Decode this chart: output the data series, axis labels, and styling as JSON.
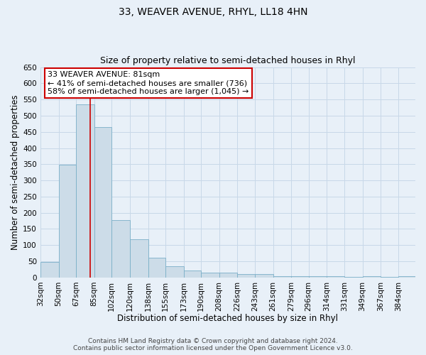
{
  "title": "33, WEAVER AVENUE, RHYL, LL18 4HN",
  "subtitle": "Size of property relative to semi-detached houses in Rhyl",
  "xlabel": "Distribution of semi-detached houses by size in Rhyl",
  "ylabel": "Number of semi-detached properties",
  "bin_labels": [
    "32sqm",
    "50sqm",
    "67sqm",
    "85sqm",
    "102sqm",
    "120sqm",
    "138sqm",
    "155sqm",
    "173sqm",
    "190sqm",
    "208sqm",
    "226sqm",
    "243sqm",
    "261sqm",
    "279sqm",
    "296sqm",
    "314sqm",
    "331sqm",
    "349sqm",
    "367sqm",
    "384sqm"
  ],
  "bin_edges": [
    32,
    50,
    67,
    85,
    102,
    120,
    138,
    155,
    173,
    190,
    208,
    226,
    243,
    261,
    279,
    296,
    314,
    331,
    349,
    367,
    384
  ],
  "bar_heights": [
    47,
    348,
    536,
    464,
    178,
    118,
    62,
    35,
    22,
    15,
    14,
    10,
    10,
    5,
    5,
    3,
    3,
    2,
    3,
    2,
    3
  ],
  "bar_color": "#ccdce8",
  "bar_edge_color": "#7aafc8",
  "grid_color": "#c8d8e8",
  "background_color": "#e8f0f8",
  "property_label": "33 WEAVER AVENUE: 81sqm",
  "pct_smaller": 41,
  "count_smaller": 736,
  "pct_larger": 58,
  "count_larger": 1045,
  "redline_x": 81,
  "ylim": [
    0,
    650
  ],
  "yticks": [
    0,
    50,
    100,
    150,
    200,
    250,
    300,
    350,
    400,
    450,
    500,
    550,
    600,
    650
  ],
  "footer_line1": "Contains HM Land Registry data © Crown copyright and database right 2024.",
  "footer_line2": "Contains public sector information licensed under the Open Government Licence v3.0.",
  "annotation_box_color": "#ffffff",
  "annotation_box_edge": "#cc0000",
  "title_fontsize": 10,
  "subtitle_fontsize": 9,
  "axis_label_fontsize": 8.5,
  "tick_fontsize": 7.5,
  "annotation_fontsize": 8,
  "footer_fontsize": 6.5
}
